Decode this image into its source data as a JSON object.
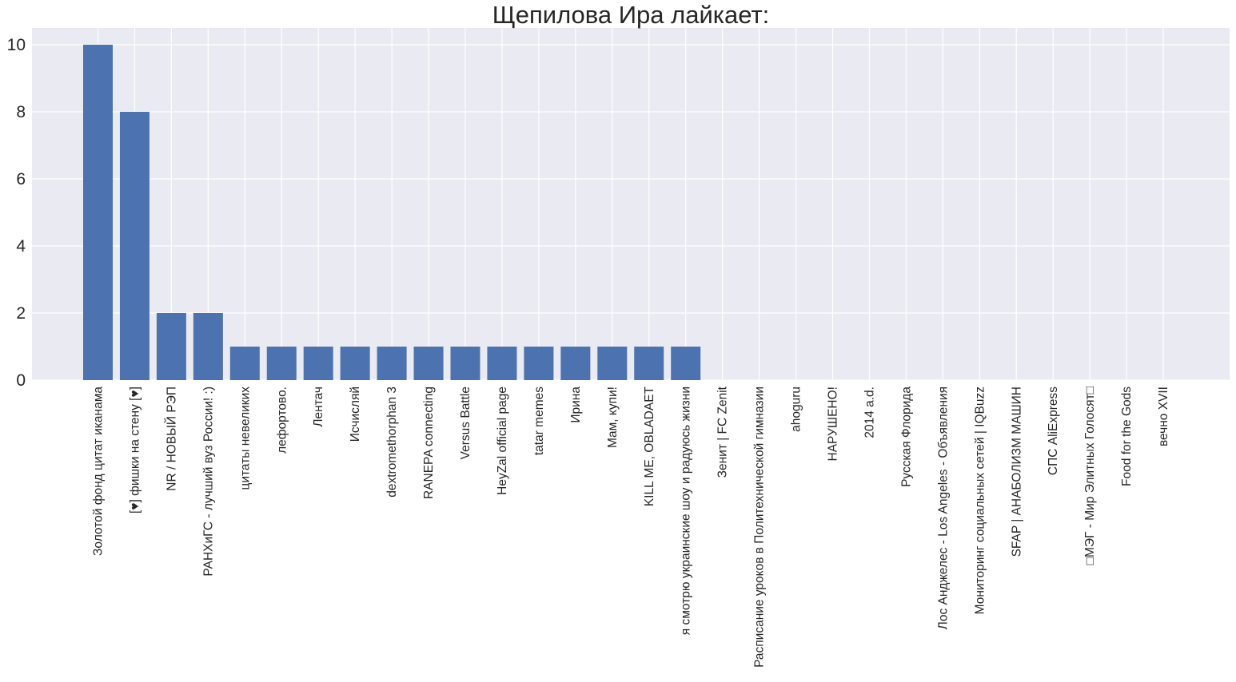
{
  "chart_data": {
    "type": "bar",
    "title": "Щепилова Ира лайкает:",
    "xlabel": "",
    "ylabel": "",
    "ylim": [
      0,
      10.5
    ],
    "yticks": [
      0,
      2,
      4,
      6,
      8,
      10
    ],
    "grid": true,
    "bar_color": "#4c72b0",
    "background_color": "#eaeaf2",
    "grid_color": "#ffffff",
    "categories": [
      "Золотой фонд цитат иканама",
      "[♥] фишки на стену [♥]",
      "NR / НОВЫЙ РЭП",
      "РАНХиГС - лучший вуз России! :)",
      "цитаты невеликих",
      "лефортово.",
      "Лентач",
      "Исчисляй",
      "dextromethorphan 3",
      "RANEPA connecting",
      "Versus Battle",
      "HeyZal official page",
      "tatar memes",
      "Ирина",
      "Мам, купи!",
      "KILL ME, OBLADAET",
      "я смотрю украинские шоу и радуюсь жизни",
      "Зенит | FC Zenit",
      "Расписание уроков в Политехнической гимназии",
      "ahoguru",
      "НАРУШЕНО!",
      "2014 a.d.",
      "Русская Флорида",
      "Лос Анджелес - Los Angeles - Объявления",
      "Мониторинг социальных сетей | IQBuzz",
      "SFAP | АНАБОЛИЗМ МАШИН",
      "СПС AliExpress",
      "□МЭГ - Мир Элитных Голосят□",
      "Food for the Gods",
      "вечно XVII"
    ],
    "values": [
      10,
      8,
      2,
      2,
      1,
      1,
      1,
      1,
      1,
      1,
      1,
      1,
      1,
      1,
      1,
      1,
      1,
      0,
      0,
      0,
      0,
      0,
      0,
      0,
      0,
      0,
      0,
      0,
      0,
      0
    ]
  }
}
